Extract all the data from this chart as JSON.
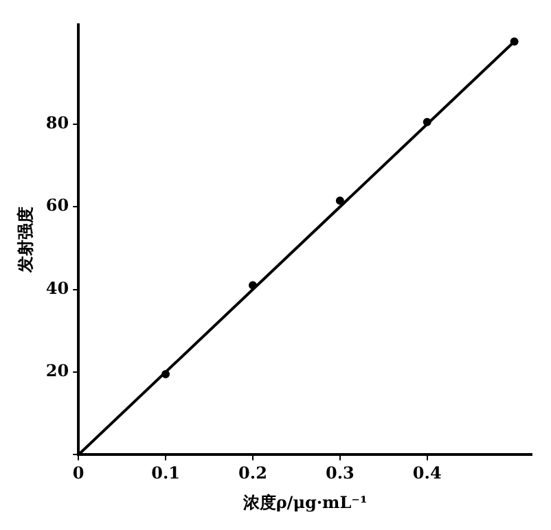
{
  "chart_data": {
    "type": "scatter",
    "xlabel": "浓度ρ/μg·mL⁻¹",
    "ylabel": "发射强度",
    "x": [
      0.1,
      0.2,
      0.3,
      0.4,
      0.5
    ],
    "series": [
      {
        "type": "scatter",
        "color": "#000000",
        "marker": "circle",
        "values": [
          19.5,
          41,
          61.5,
          80.5,
          100
        ]
      },
      {
        "type": "line",
        "color": "#000000",
        "marker": "none",
        "x": [
          0,
          0.5
        ],
        "values": [
          0,
          100
        ]
      }
    ],
    "xlim": [
      0,
      0.52
    ],
    "ylim": [
      0,
      104
    ],
    "xticks": [
      0,
      0.1,
      0.2,
      0.3,
      0.4
    ],
    "yticks": [
      {
        "value": 0,
        "label": null
      },
      20,
      40,
      60,
      80
    ],
    "grid": false,
    "legend": false
  }
}
